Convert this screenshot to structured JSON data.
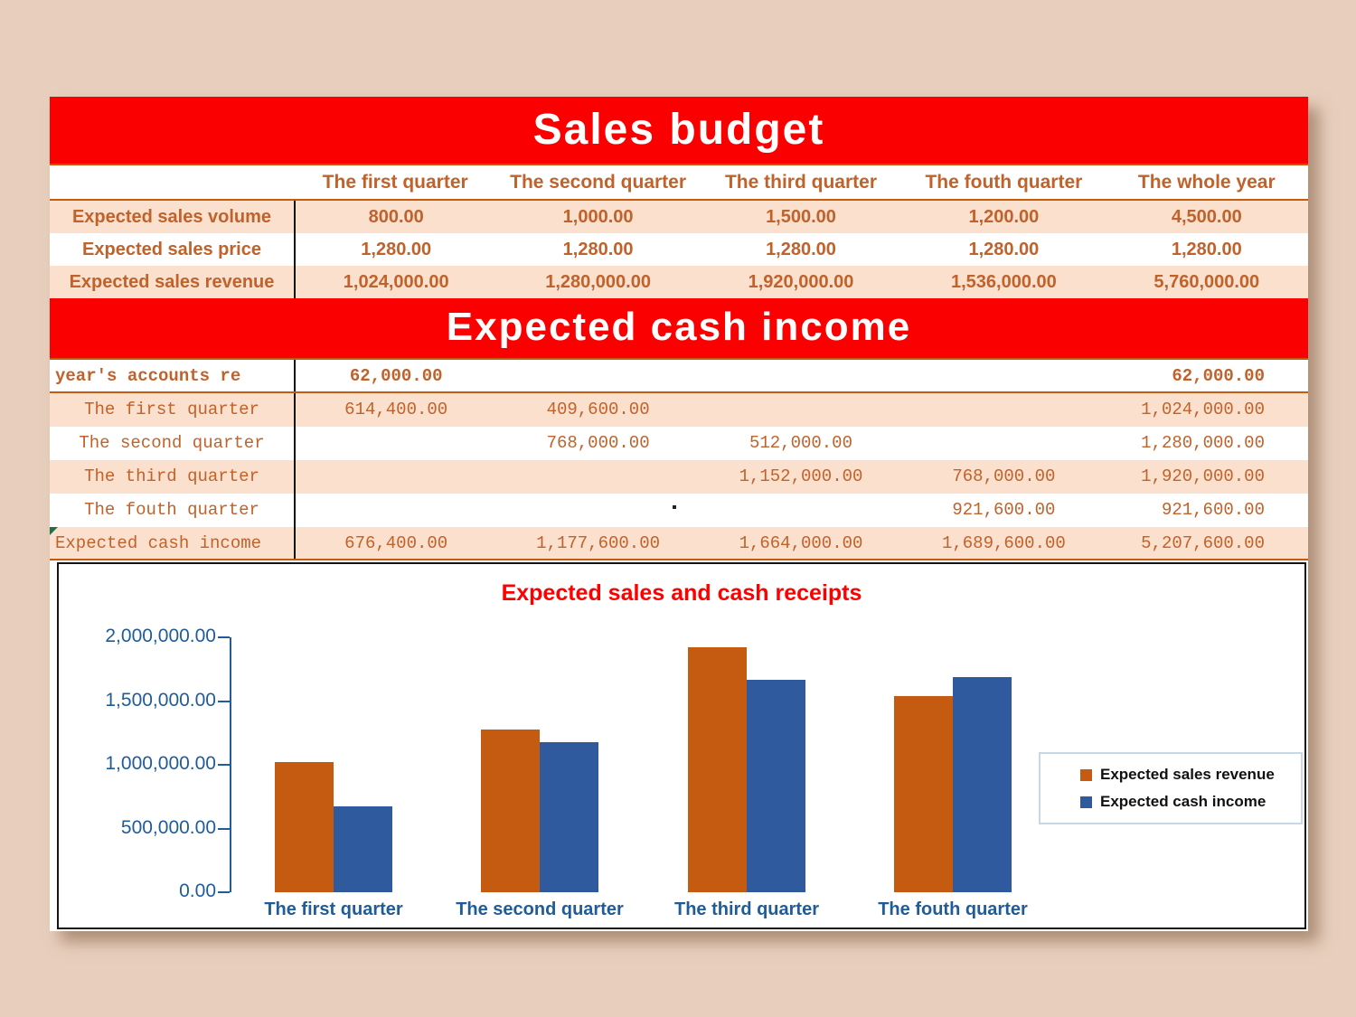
{
  "colors": {
    "background": "#E8CFBD",
    "banner_red": "#FA0000",
    "row_peach": "#FBE0CE",
    "text_orange": "#C0622B",
    "rule_orange": "#C55A11",
    "axis_blue": "#1F5C99",
    "bar_orange": "#C55A11",
    "bar_blue": "#2F5B9E",
    "error_green": "#1E7145"
  },
  "sales_budget": {
    "title": "Sales budget",
    "columns": [
      "The first quarter",
      "The second quarter",
      "The third quarter",
      "The fouth quarter",
      "The whole year"
    ],
    "rows": [
      {
        "label": "Expected sales volume",
        "values": [
          "800.00",
          "1,000.00",
          "1,500.00",
          "1,200.00",
          "4,500.00"
        ]
      },
      {
        "label": "Expected sales price",
        "values": [
          "1,280.00",
          "1,280.00",
          "1,280.00",
          "1,280.00",
          "1,280.00"
        ]
      },
      {
        "label": "Expected sales revenue",
        "values": [
          "1,024,000.00",
          "1,280,000.00",
          "1,920,000.00",
          "1,536,000.00",
          "5,760,000.00"
        ]
      }
    ]
  },
  "cash_income": {
    "title": "Expected cash income",
    "rows": [
      {
        "label": "year's accounts re",
        "bold": true,
        "label_align": "left",
        "underline": true,
        "values": [
          "62,000.00",
          "",
          "",
          "",
          "62,000.00"
        ]
      },
      {
        "label": "The first quarter",
        "bold": false,
        "label_align": "center",
        "underline": false,
        "values": [
          "614,400.00",
          "409,600.00",
          "",
          "",
          "1,024,000.00"
        ]
      },
      {
        "label": "The second quarter",
        "bold": false,
        "label_align": "center",
        "underline": false,
        "values": [
          "",
          "768,000.00",
          "512,000.00",
          "",
          "1,280,000.00"
        ]
      },
      {
        "label": "The third quarter",
        "bold": false,
        "label_align": "center",
        "underline": false,
        "values": [
          "",
          "",
          "1,152,000.00",
          "768,000.00",
          "1,920,000.00"
        ]
      },
      {
        "label": "The fouth quarter",
        "bold": false,
        "label_align": "center",
        "underline": false,
        "values": [
          "",
          "",
          "",
          "921,600.00",
          "921,600.00"
        ]
      },
      {
        "label": "Expected cash income",
        "bold": false,
        "label_align": "left",
        "underline": true,
        "error_indicator": true,
        "values": [
          "676,400.00",
          "1,177,600.00",
          "1,664,000.00",
          "1,689,600.00",
          "5,207,600.00"
        ]
      }
    ]
  },
  "chart_data": {
    "type": "bar",
    "title": "Expected sales and cash receipts",
    "categories": [
      "The first quarter",
      "The second quarter",
      "The third quarter",
      "The fouth quarter"
    ],
    "series": [
      {
        "name": "Expected sales revenue",
        "color": "#C55A11",
        "values": [
          1024000,
          1280000,
          1920000,
          1536000
        ]
      },
      {
        "name": "Expected cash income",
        "color": "#2F5B9E",
        "values": [
          676400,
          1177600,
          1664000,
          1689600
        ]
      }
    ],
    "ylim": [
      0,
      2000000
    ],
    "y_tick_step": 500000,
    "y_tick_labels": [
      "2,000,000.00",
      "1,500,000.00",
      "1,000,000.00",
      "500,000.00",
      "0.00"
    ],
    "grid": false,
    "legend_position": "right"
  }
}
